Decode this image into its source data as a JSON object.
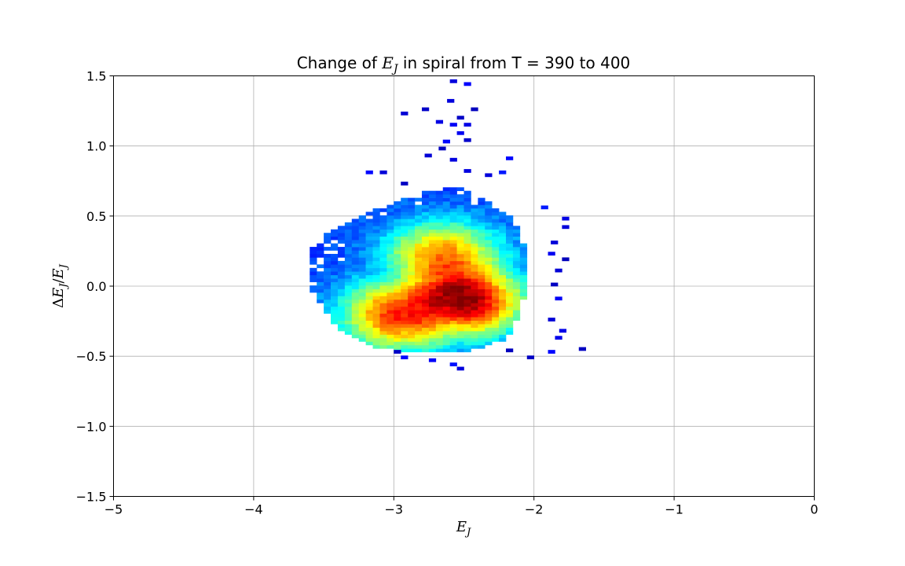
{
  "chart_data": {
    "type": "heatmap",
    "title_prefix": "Change of ",
    "title_var": "E",
    "title_var_sub": "J",
    "title_suffix": " in spiral from T = 390 to 400",
    "xlabel_var": "E",
    "xlabel_sub": "J",
    "ylabel_prefix": "Δ",
    "ylabel_num": "E",
    "ylabel_num_sub": "J",
    "ylabel_slash": "/",
    "ylabel_den": "E",
    "ylabel_den_sub": "J",
    "xlim": [
      -5,
      0
    ],
    "ylim": [
      -1.5,
      1.5
    ],
    "xticks": [
      -5,
      -4,
      -3,
      -2,
      -1,
      0
    ],
    "yticks": [
      -1.5,
      -1.0,
      -0.5,
      0.0,
      0.5,
      1.0,
      1.5
    ],
    "xtick_labels": [
      "−5",
      "−4",
      "−3",
      "−2",
      "−1",
      "0"
    ],
    "ytick_labels": [
      "−1.5",
      "−1.0",
      "−0.5",
      "0.0",
      "0.5",
      "1.0",
      "1.5"
    ],
    "grid": true,
    "colormap": "jet",
    "bin_width_x": 0.05,
    "bin_height_y": 0.025,
    "core_cells": [
      {
        "x": -2.55,
        "y": -0.05,
        "v": 1.0
      },
      {
        "x": -2.5,
        "y": -0.1,
        "v": 1.0
      },
      {
        "x": -2.6,
        "y": -0.08,
        "v": 0.97
      },
      {
        "x": -2.7,
        "y": -0.12,
        "v": 0.92
      },
      {
        "x": -2.85,
        "y": -0.18,
        "v": 0.85
      },
      {
        "x": -2.95,
        "y": -0.2,
        "v": 0.82
      },
      {
        "x": -2.6,
        "y": 0.1,
        "v": 0.8
      },
      {
        "x": -2.65,
        "y": 0.2,
        "v": 0.72
      }
    ]
  }
}
